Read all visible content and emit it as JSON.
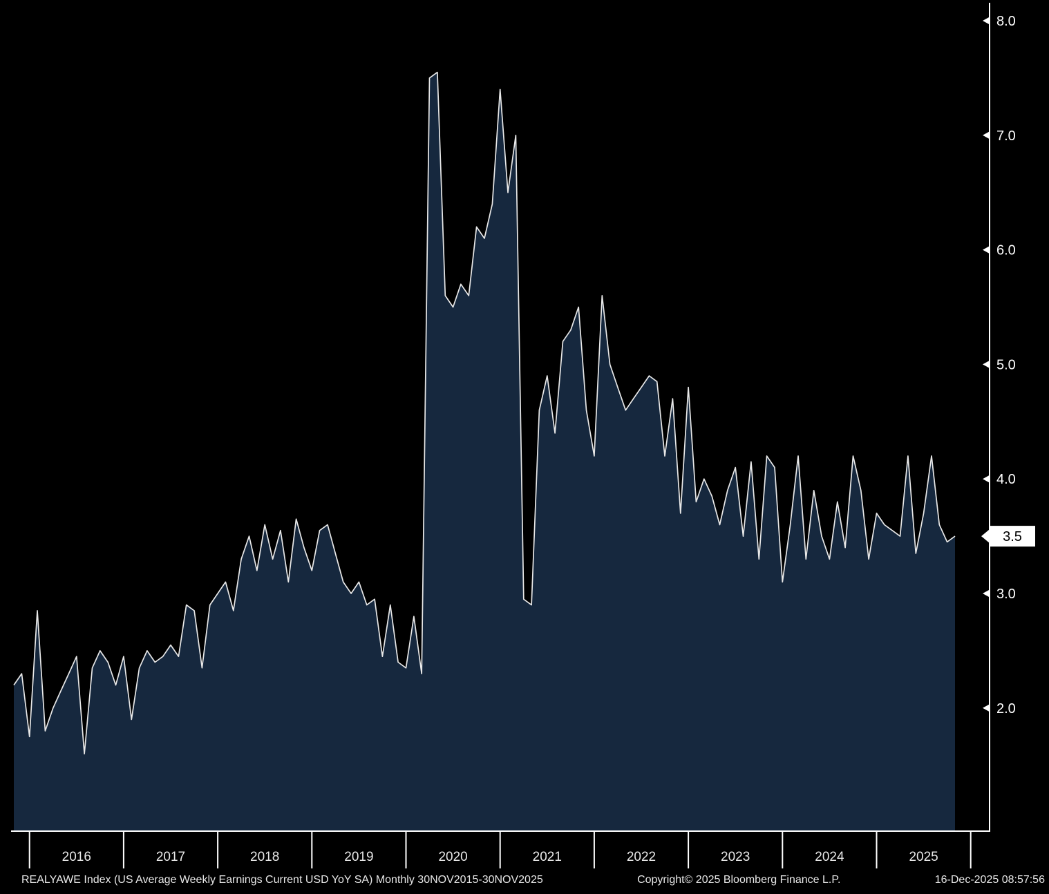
{
  "chart_data": {
    "type": "area",
    "title": "REALYAWE Index (US Average Weekly Earnings Current USD YoY SA)",
    "frequency": "Monthly",
    "x_range": [
      "30NOV2015",
      "30NOV2025"
    ],
    "grid": "off",
    "legend": "none",
    "y_axis": {
      "position": "right",
      "max_value": 8.0,
      "min_value": 2.0,
      "ticks": [
        {
          "value": 8.0,
          "label": "8.0"
        },
        {
          "value": 7.0,
          "label": "7.0"
        },
        {
          "value": 6.0,
          "label": "6.0"
        },
        {
          "value": 5.0,
          "label": "5.0"
        },
        {
          "value": 4.0,
          "label": "4.0"
        },
        {
          "value": 3.0,
          "label": "3.0"
        },
        {
          "value": 2.0,
          "label": "2.0"
        }
      ]
    },
    "x_axis": {
      "year_labels": [
        "2016",
        "2017",
        "2018",
        "2019",
        "2020",
        "2021",
        "2022",
        "2023",
        "2024",
        "2025"
      ]
    },
    "last_value": {
      "value": 3.5,
      "label": "3.5"
    },
    "series": [
      {
        "name": "REALYAWE Index",
        "start": "2015-11",
        "end": "2025-11",
        "values": [
          2.2,
          2.3,
          1.75,
          2.85,
          1.8,
          2.0,
          2.15,
          2.3,
          2.45,
          1.6,
          2.35,
          2.5,
          2.4,
          2.2,
          2.45,
          1.9,
          2.35,
          2.5,
          2.4,
          2.45,
          2.55,
          2.45,
          2.9,
          2.85,
          2.35,
          2.9,
          3.0,
          3.1,
          2.85,
          3.3,
          3.5,
          3.2,
          3.6,
          3.3,
          3.55,
          3.1,
          3.65,
          3.4,
          3.2,
          3.55,
          3.6,
          3.35,
          3.1,
          3.0,
          3.1,
          2.9,
          2.95,
          2.45,
          2.9,
          2.4,
          2.35,
          2.8,
          2.3,
          7.5,
          7.55,
          5.6,
          5.5,
          5.7,
          5.6,
          6.2,
          6.1,
          6.4,
          7.4,
          6.5,
          7.0,
          2.95,
          2.9,
          4.6,
          4.9,
          4.4,
          5.2,
          5.3,
          5.5,
          4.6,
          4.2,
          5.6,
          5.0,
          4.8,
          4.6,
          4.7,
          4.8,
          4.9,
          4.85,
          4.2,
          4.7,
          3.7,
          4.8,
          3.8,
          4.0,
          3.85,
          3.6,
          3.9,
          4.1,
          3.5,
          4.15,
          3.3,
          4.2,
          4.1,
          3.1,
          3.6,
          4.2,
          3.3,
          3.9,
          3.5,
          3.3,
          3.8,
          3.4,
          4.2,
          3.9,
          3.3,
          3.7,
          3.6,
          3.55,
          3.5,
          4.2,
          3.35,
          3.7,
          4.2,
          3.6,
          3.45,
          3.5
        ]
      }
    ],
    "colors": {
      "background": "#000000",
      "area_fill": "#16283e",
      "line": "#e8e8e8",
      "axis": "#ffffff",
      "axis_text": "#ffffff",
      "year_text": "#e8e8e8",
      "last_value_box_bg": "#ffffff",
      "last_value_box_text": "#000000"
    }
  },
  "footer": {
    "description": "REALYAWE Index (US Average Weekly Earnings Current USD YoY SA) Monthly 30NOV2015-30NOV2025",
    "copyright": "Copyright© 2025 Bloomberg Finance L.P.",
    "timestamp": "16-Dec-2025 08:57:56"
  }
}
